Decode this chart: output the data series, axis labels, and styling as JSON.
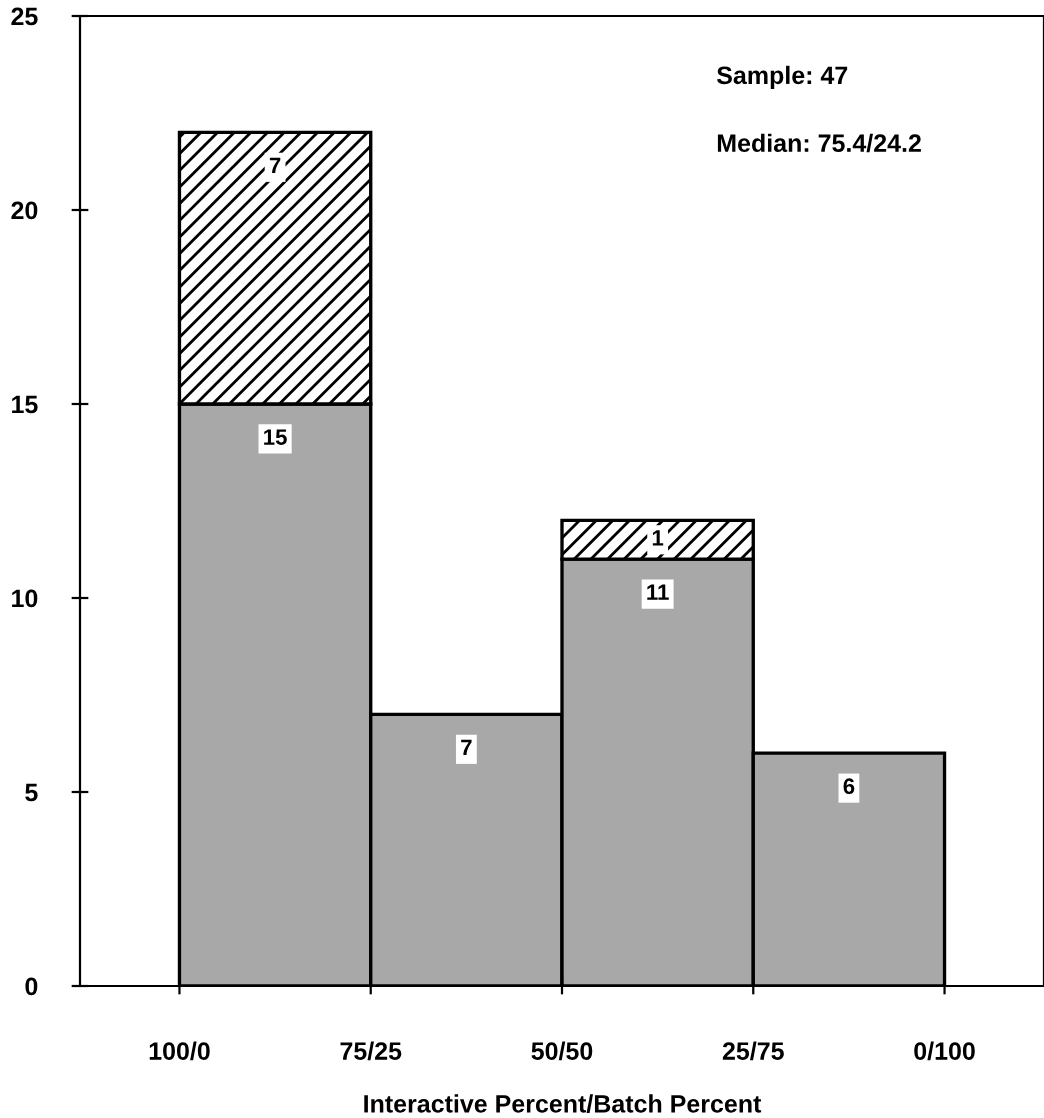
{
  "chart_data": {
    "type": "bar",
    "stacked": true,
    "data_labels": true,
    "categories": [
      null,
      null,
      null,
      null
    ],
    "series": [
      {
        "color": "#a8a8a8",
        "values": [
          15,
          7,
          11,
          6
        ]
      },
      {
        "color": "#000000",
        "values": [
          7,
          null,
          1,
          null
        ]
      }
    ],
    "ylim": [
      0,
      25
    ],
    "yticks": [
      0,
      5,
      10,
      15,
      20,
      25
    ],
    "xlabel": "Interactive Percent/Batch Percent",
    "annotations": [
      "Sample: 47",
      "Median: 75.4/24.2",
      "100/0",
      "75/25",
      "50/50",
      "25/75",
      "0/100"
    ],
    "grid": false
  }
}
